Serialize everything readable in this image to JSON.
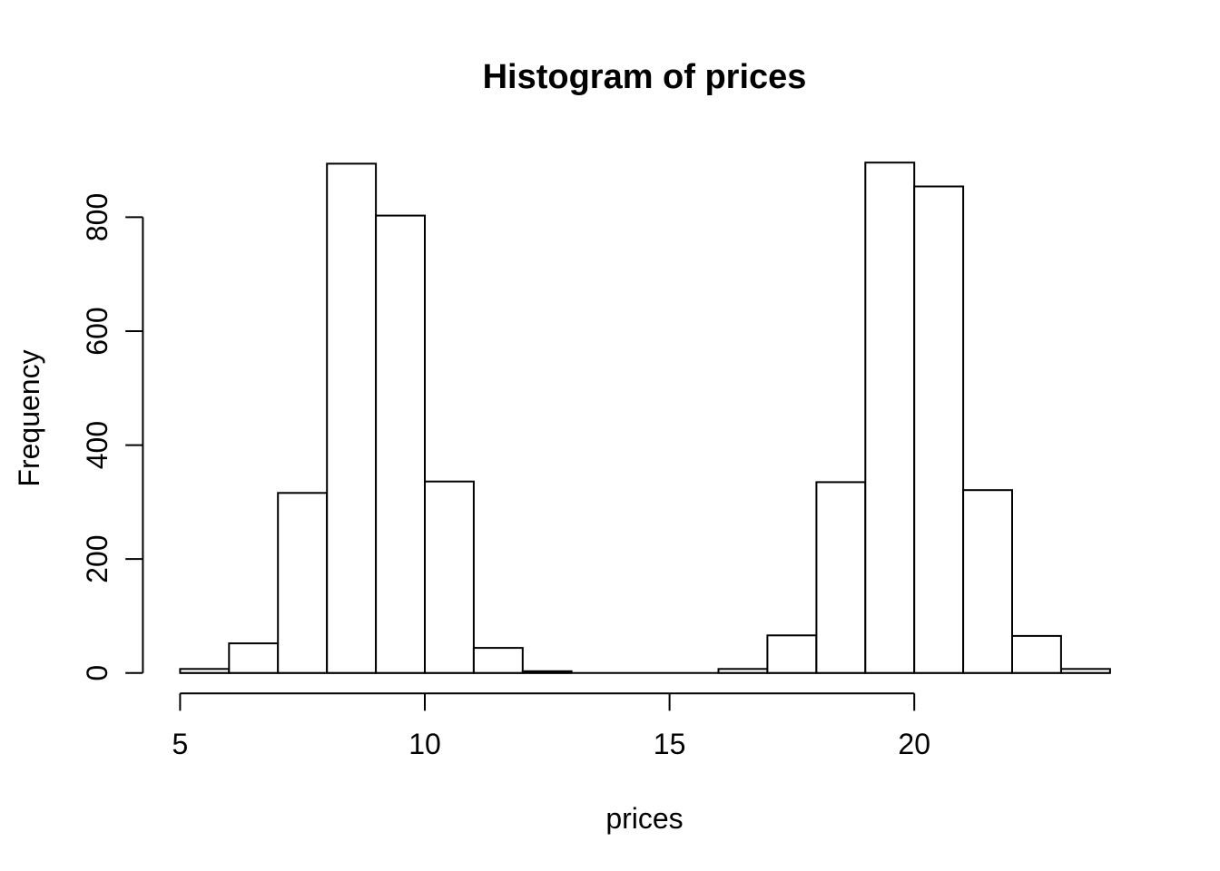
{
  "figure": {
    "background": "#ffffff"
  },
  "chart_data": {
    "type": "bar",
    "variant": "histogram",
    "title": "Histogram of prices",
    "xlabel": "prices",
    "ylabel": "Frequency",
    "bin_edges": [
      5,
      6,
      7,
      8,
      9,
      10,
      11,
      12,
      13,
      14,
      15,
      16,
      17,
      18,
      19,
      20,
      21,
      22,
      23,
      24
    ],
    "counts": [
      7,
      52,
      316,
      894,
      803,
      336,
      44,
      3,
      0,
      0,
      0,
      7,
      66,
      335,
      896,
      854,
      321,
      65,
      7
    ],
    "x_ticks": [
      5,
      10,
      15,
      20
    ],
    "y_ticks": [
      0,
      200,
      400,
      600,
      800
    ],
    "xlim": [
      4.24,
      24.76
    ],
    "ylim": [
      0,
      896
    ],
    "grid": false,
    "legend": null,
    "bar_fill": "#ffffff",
    "bar_stroke": "#000000",
    "axis_color": "#000000",
    "text_color": "#000000"
  }
}
